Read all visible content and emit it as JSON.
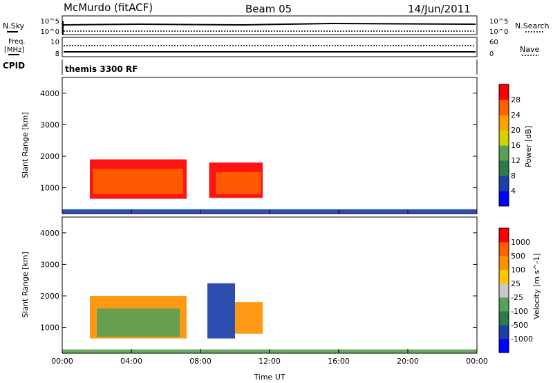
{
  "header": {
    "station": "McMurdo (fitACF)",
    "beam": "Beam 05",
    "date": "14/Jun/2011"
  },
  "panel_labels": {
    "nsky": "N.Sky",
    "nsearch": "N.Search",
    "freq_line1": "Freq.",
    "freq_line2": "[MHz]",
    "nave": "Nave",
    "cpid": "CPID",
    "cpid_value": "themis 3300 RF"
  },
  "noise_axis": {
    "left_top": "10^5",
    "left_bottom": "10^0",
    "right_top": "10^5",
    "right_bottom": "10^0"
  },
  "freq_axis": {
    "left_top": "10",
    "left_bottom": "8",
    "right_top": "60",
    "right_bottom": "0"
  },
  "colors": {
    "power_scale": [
      "#0000ff",
      "#1c3fa8",
      "#2e7a4a",
      "#5aa055",
      "#d8d000",
      "#ffa000",
      "#ff6000",
      "#ff0000"
    ],
    "velocity_scale": [
      "#0000ff",
      "#1c3fa8",
      "#2e7a4a",
      "#5aa055",
      "#c8c8c8",
      "#ffc800",
      "#ff9000",
      "#ff6000",
      "#ff0000"
    ]
  },
  "chart_data": [
    {
      "type": "heatmap",
      "name": "power",
      "ylabel": "Slant Range [km]",
      "yticks": [
        "4000",
        "3000",
        "2000",
        "1000"
      ],
      "colorbar_label": "Power [dB]",
      "colorbar_ticks": [
        "28",
        "24",
        "20",
        "16",
        "12",
        "8",
        "4"
      ],
      "ylim": [
        180,
        4500
      ],
      "xlim": [
        0,
        24
      ],
      "regions": [
        {
          "x0": 1.6,
          "x1": 7.2,
          "y0": 650,
          "y1": 1900,
          "level": 7
        },
        {
          "x0": 1.8,
          "x1": 7.0,
          "y0": 800,
          "y1": 1600,
          "level": 6
        },
        {
          "x0": 8.5,
          "x1": 11.6,
          "y0": 680,
          "y1": 1800,
          "level": 7
        },
        {
          "x0": 8.9,
          "x1": 11.5,
          "y0": 800,
          "y1": 1500,
          "level": 6
        },
        {
          "x0": 0.0,
          "x1": 24.0,
          "y0": 180,
          "y1": 320,
          "level": 1
        }
      ]
    },
    {
      "type": "heatmap",
      "name": "velocity",
      "xlabel": "Time UT",
      "ylabel": "Slant Range [km]",
      "yticks": [
        "4000",
        "3000",
        "2000",
        "1000"
      ],
      "xticks": [
        "00:00",
        "04:00",
        "08:00",
        "12:00",
        "16:00",
        "20:00",
        "00:00"
      ],
      "colorbar_label": "Velocity [m s^-1]",
      "colorbar_ticks": [
        "1000",
        "500",
        "100",
        "25",
        "-25",
        "-100",
        "-500",
        "-1000"
      ],
      "ylim": [
        180,
        4500
      ],
      "xlim": [
        0,
        24
      ],
      "regions": [
        {
          "x0": 1.6,
          "x1": 7.2,
          "y0": 650,
          "y1": 2000,
          "level": 6
        },
        {
          "x0": 2.0,
          "x1": 6.8,
          "y0": 700,
          "y1": 1600,
          "level": 3
        },
        {
          "x0": 8.4,
          "x1": 10.0,
          "y0": 650,
          "y1": 2400,
          "level": 1
        },
        {
          "x0": 10.0,
          "x1": 11.6,
          "y0": 800,
          "y1": 1800,
          "level": 6
        },
        {
          "x0": 0.0,
          "x1": 24.0,
          "y0": 180,
          "y1": 300,
          "level": 3
        }
      ]
    }
  ]
}
